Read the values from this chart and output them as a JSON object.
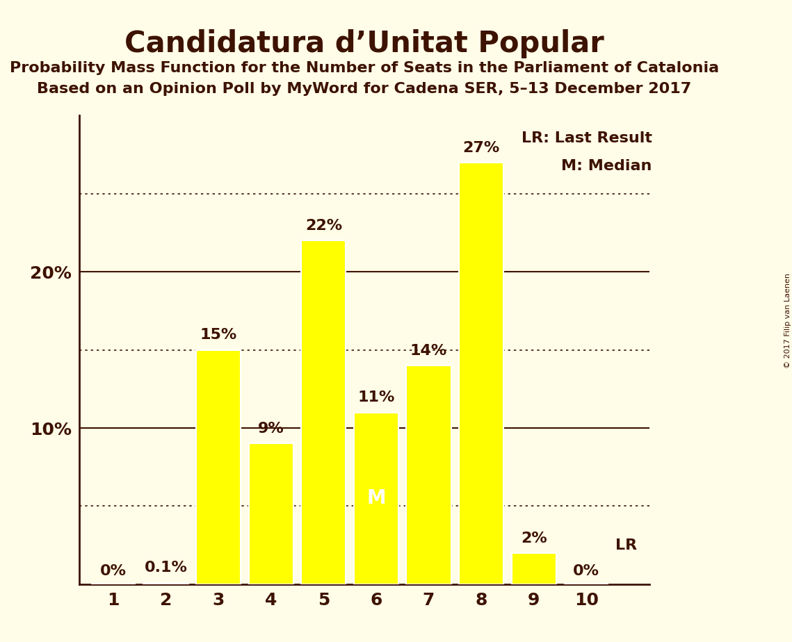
{
  "title": "Candidatura d’Unitat Popular",
  "subtitle1": "Probability Mass Function for the Number of Seats in the Parliament of Catalonia",
  "subtitle2": "Based on an Opinion Poll by MyWord for Cadena SER, 5–13 December 2017",
  "copyright": "© 2017 Filip van Laenen",
  "categories": [
    1,
    2,
    3,
    4,
    5,
    6,
    7,
    8,
    9,
    10
  ],
  "values": [
    0.0,
    0.1,
    15.0,
    9.0,
    22.0,
    11.0,
    14.0,
    27.0,
    2.0,
    0.0
  ],
  "labels": [
    "0%",
    "0.1%",
    "15%",
    "9%",
    "22%",
    "11%",
    "14%",
    "27%",
    "2%",
    "0%"
  ],
  "bar_color": "#FFFF00",
  "bar_edgecolor": "#FFFFFF",
  "background_color": "#FFFDE8",
  "median_seat": 6,
  "lr_seat": 10,
  "lr_label": "LR",
  "median_label": "M",
  "legend_lr": "LR: Last Result",
  "legend_m": "M: Median",
  "ylim": [
    0,
    30
  ],
  "solid_yticks": [
    10,
    20
  ],
  "dotted_yticks": [
    5,
    15,
    25
  ],
  "title_fontsize": 30,
  "subtitle_fontsize": 16,
  "label_fontsize": 16,
  "tick_fontsize": 18,
  "text_color": "#3d1200",
  "dotted_color": "#3d1200",
  "solid_color": "#3d1200",
  "spine_color": "#3d1200",
  "white_color": "#FFFFFF"
}
